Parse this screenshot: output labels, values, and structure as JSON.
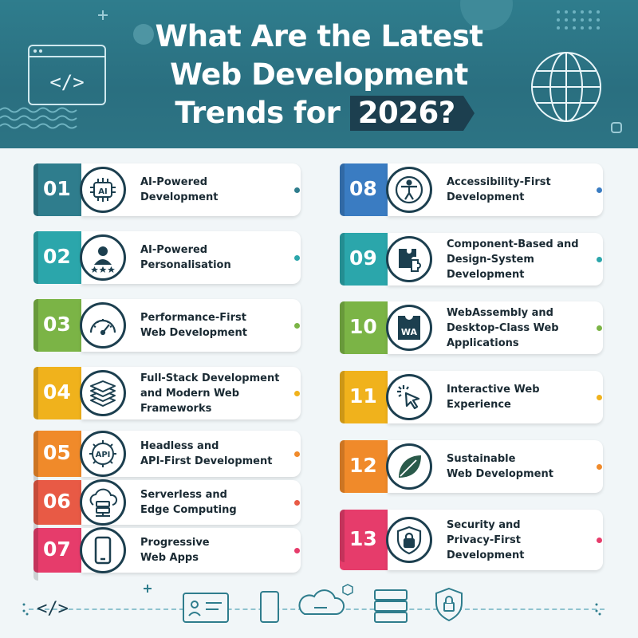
{
  "header": {
    "title_line1": "What Are the Latest",
    "title_line2": "Web Development",
    "title_line3": "Trends for",
    "title_year": "2026?"
  },
  "colors": {
    "header_bg": "#2f7d8d",
    "dark": "#1c3f4f",
    "background": "#f1f6f8"
  },
  "trends": [
    {
      "num": "01",
      "label": "AI-Powered\nDevelopment",
      "color": "#2f7d8d",
      "icon": "ai-chip-icon"
    },
    {
      "num": "02",
      "label": "AI-Powered\nPersonalisation",
      "color": "#2ba6ab",
      "icon": "user-stars-icon"
    },
    {
      "num": "03",
      "label": "Performance-First\nWeb Development",
      "color": "#7bb446",
      "icon": "speedometer-icon"
    },
    {
      "num": "04",
      "label": "Full-Stack Development\nand Modern Web\nFrameworks",
      "color": "#f0b21c",
      "icon": "stack-layers-icon"
    },
    {
      "num": "05",
      "label": "Headless and\nAPI-First Development",
      "color": "#f08a2a",
      "icon": "api-gear-icon"
    },
    {
      "num": "06",
      "label": "Serverless and\nEdge Computing",
      "color": "#e85a45",
      "icon": "cloud-server-icon"
    },
    {
      "num": "07",
      "label": "Progressive\nWeb Apps",
      "color": "#e63c6b",
      "icon": "smartphone-icon"
    },
    {
      "num": "08",
      "label": "Accessibility-First\nDevelopment",
      "color": "#3a7cc2",
      "icon": "accessibility-icon"
    },
    {
      "num": "09",
      "label": "Component-Based and\nDesign-System\nDevelopment",
      "color": "#2ba6ab",
      "icon": "puzzle-icon"
    },
    {
      "num": "10",
      "label": "WebAssembly and\nDesktop-Class Web\nApplications",
      "color": "#7bb446",
      "icon": "webassembly-icon",
      "icon_text": "WA"
    },
    {
      "num": "11",
      "label": "Interactive Web\nExperience",
      "color": "#f0b21c",
      "icon": "cursor-click-icon"
    },
    {
      "num": "12",
      "label": "Sustainable\nWeb Development",
      "color": "#f08a2a",
      "icon": "leaf-icon"
    },
    {
      "num": "13",
      "label": "Security and\nPrivacy-First\nDevelopment",
      "color": "#e63c6b",
      "icon": "shield-lock-icon"
    }
  ],
  "footer": {
    "icons": [
      "code-icon",
      "monitor-user-icon",
      "phone-icon",
      "cloud-icon",
      "server-icon",
      "shield-lock-icon"
    ],
    "code_symbol": "</>"
  }
}
